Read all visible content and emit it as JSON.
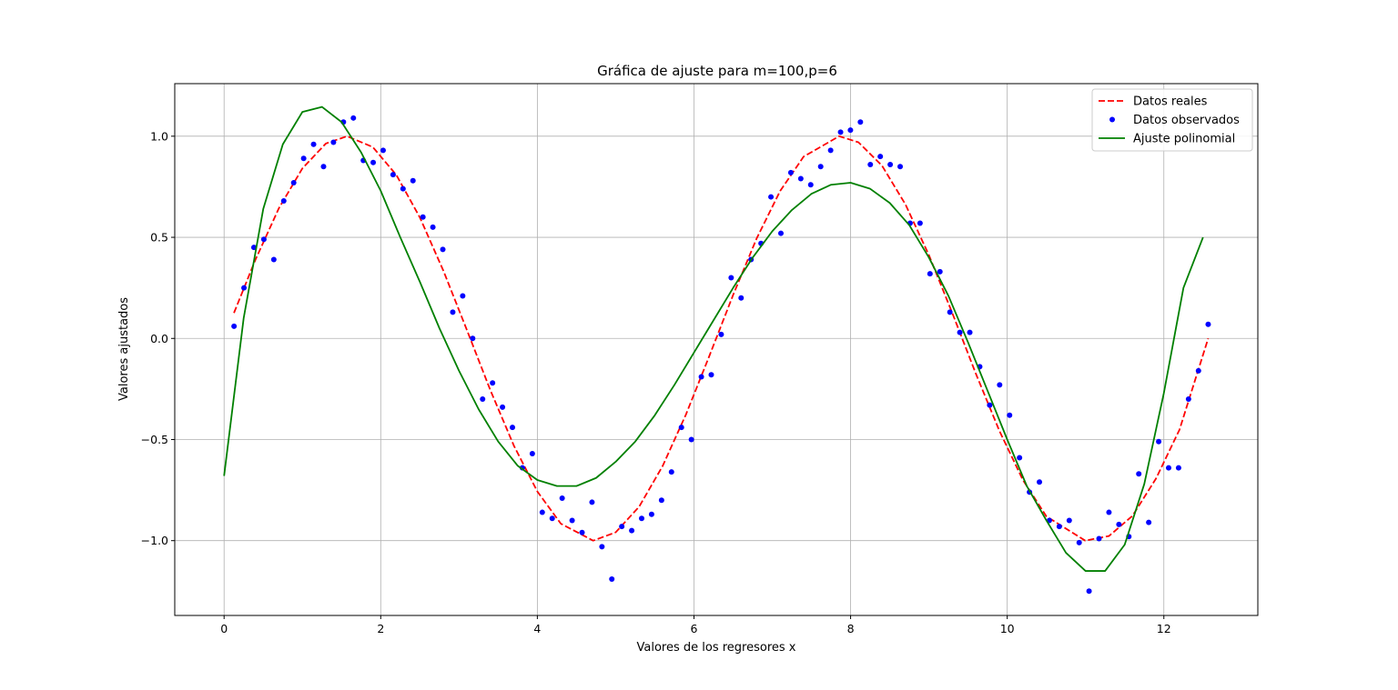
{
  "chart_data": {
    "type": "line",
    "title": "Gráfica de ajuste para m=100,p=6",
    "xlabel": "Valores de los regresores x",
    "ylabel": "Valores ajustados",
    "xlim": [
      -0.63,
      13.2
    ],
    "ylim": [
      -1.37,
      1.26
    ],
    "xticks": [
      0,
      2,
      4,
      6,
      8,
      10,
      12
    ],
    "yticks": [
      -1.0,
      -0.5,
      0.0,
      0.5,
      1.0
    ],
    "xtick_labels": [
      "0",
      "2",
      "4",
      "6",
      "8",
      "10",
      "12"
    ],
    "ytick_labels": [
      "−1.0",
      "−0.5",
      "0.0",
      "0.5",
      "1.0"
    ],
    "grid": true,
    "legend_position": "top-right",
    "series": [
      {
        "name": "Datos reales",
        "style": "dashed",
        "color": "#ff0000",
        "x": [
          0.126,
          0.4,
          0.7,
          1.0,
          1.3,
          1.5708,
          1.9,
          2.2,
          2.5,
          2.8,
          3.1,
          3.4,
          3.7,
          4.0,
          4.3,
          4.7124,
          5.0,
          5.3,
          5.6,
          5.9,
          6.2,
          6.5,
          6.8,
          7.1,
          7.4,
          7.854,
          8.1,
          8.4,
          8.7,
          9.0,
          9.3,
          9.6,
          9.9,
          10.2,
          10.5,
          10.9956,
          11.3,
          11.6,
          11.9,
          12.2,
          12.566
        ],
        "y": [
          0.126,
          0.389,
          0.644,
          0.841,
          0.964,
          1.0,
          0.946,
          0.808,
          0.598,
          0.335,
          0.042,
          -0.256,
          -0.53,
          -0.757,
          -0.916,
          -1.0,
          -0.959,
          -0.832,
          -0.631,
          -0.374,
          -0.083,
          0.215,
          0.494,
          0.729,
          0.899,
          1.0,
          0.97,
          0.855,
          0.663,
          0.412,
          0.124,
          -0.175,
          -0.457,
          -0.7,
          -0.88,
          -1.0,
          -0.977,
          -0.877,
          -0.693,
          -0.451,
          0.0
        ]
      },
      {
        "name": "Datos observados",
        "style": "points",
        "color": "#0000ff",
        "x": [
          0.127,
          0.254,
          0.381,
          0.508,
          0.635,
          0.762,
          0.889,
          1.016,
          1.143,
          1.27,
          1.397,
          1.524,
          1.651,
          1.778,
          1.904,
          2.031,
          2.158,
          2.285,
          2.412,
          2.539,
          2.666,
          2.793,
          2.92,
          3.047,
          3.174,
          3.301,
          3.428,
          3.555,
          3.682,
          3.809,
          3.936,
          4.063,
          4.19,
          4.317,
          4.444,
          4.571,
          4.698,
          4.825,
          4.951,
          5.078,
          5.205,
          5.332,
          5.459,
          5.586,
          5.713,
          5.84,
          5.967,
          6.094,
          6.221,
          6.348,
          6.475,
          6.602,
          6.729,
          6.856,
          6.983,
          7.11,
          7.237,
          7.364,
          7.491,
          7.618,
          7.745,
          7.872,
          7.998,
          8.125,
          8.252,
          8.379,
          8.506,
          8.633,
          8.76,
          8.887,
          9.014,
          9.141,
          9.268,
          9.395,
          9.522,
          9.649,
          9.776,
          9.903,
          10.03,
          10.157,
          10.284,
          10.411,
          10.538,
          10.665,
          10.792,
          10.919,
          11.045,
          11.172,
          11.299,
          11.426,
          11.553,
          11.68,
          11.807,
          11.934,
          12.061,
          12.188,
          12.315,
          12.442,
          12.566
        ],
        "y": [
          0.06,
          0.25,
          0.45,
          0.49,
          0.39,
          0.68,
          0.77,
          0.89,
          0.96,
          0.85,
          0.97,
          1.07,
          1.09,
          0.88,
          0.87,
          0.93,
          0.81,
          0.74,
          0.78,
          0.6,
          0.55,
          0.44,
          0.13,
          0.21,
          0.0,
          -0.3,
          -0.22,
          -0.34,
          -0.44,
          -0.64,
          -0.57,
          -0.86,
          -0.89,
          -0.79,
          -0.9,
          -0.96,
          -0.81,
          -1.03,
          -1.19,
          -0.93,
          -0.95,
          -0.89,
          -0.87,
          -0.8,
          -0.66,
          -0.44,
          -0.5,
          -0.19,
          -0.18,
          0.02,
          0.3,
          0.2,
          0.39,
          0.47,
          0.7,
          0.52,
          0.82,
          0.79,
          0.76,
          0.85,
          0.93,
          1.02,
          1.03,
          1.07,
          0.86,
          0.9,
          0.86,
          0.85,
          0.57,
          0.57,
          0.32,
          0.33,
          0.13,
          0.03,
          0.03,
          -0.14,
          -0.33,
          -0.23,
          -0.38,
          -0.59,
          -0.76,
          -0.71,
          -0.9,
          -0.93,
          -0.9,
          -1.01,
          -1.25,
          -0.99,
          -0.86,
          -0.92,
          -0.98,
          -0.67,
          -0.91,
          -0.51,
          -0.64,
          -0.64,
          -0.3,
          -0.16,
          0.07
        ]
      },
      {
        "name": "Ajuste polinomial",
        "style": "solid",
        "color": "#008000",
        "x": [
          0.0,
          0.25,
          0.5,
          0.75,
          1.0,
          1.25,
          1.5,
          1.75,
          2.0,
          2.25,
          2.5,
          2.75,
          3.0,
          3.25,
          3.5,
          3.75,
          4.0,
          4.25,
          4.5,
          4.75,
          5.0,
          5.25,
          5.5,
          5.75,
          6.0,
          6.25,
          6.5,
          6.75,
          7.0,
          7.25,
          7.5,
          7.75,
          8.0,
          8.25,
          8.5,
          8.75,
          9.0,
          9.25,
          9.5,
          9.75,
          10.0,
          10.25,
          10.5,
          10.75,
          11.0,
          11.25,
          11.5,
          11.75,
          12.0,
          12.25,
          12.5
        ],
        "y": [
          -0.68,
          0.1,
          0.64,
          0.96,
          1.12,
          1.145,
          1.07,
          0.92,
          0.73,
          0.5,
          0.28,
          0.05,
          -0.16,
          -0.35,
          -0.51,
          -0.63,
          -0.7,
          -0.73,
          -0.73,
          -0.69,
          -0.61,
          -0.51,
          -0.38,
          -0.23,
          -0.07,
          0.09,
          0.25,
          0.4,
          0.53,
          0.635,
          0.715,
          0.76,
          0.77,
          0.74,
          0.67,
          0.56,
          0.4,
          0.21,
          -0.02,
          -0.26,
          -0.5,
          -0.73,
          -0.9,
          -1.06,
          -1.15,
          -1.15,
          -1.02,
          -0.72,
          -0.27,
          0.25,
          0.5
        ]
      }
    ]
  }
}
